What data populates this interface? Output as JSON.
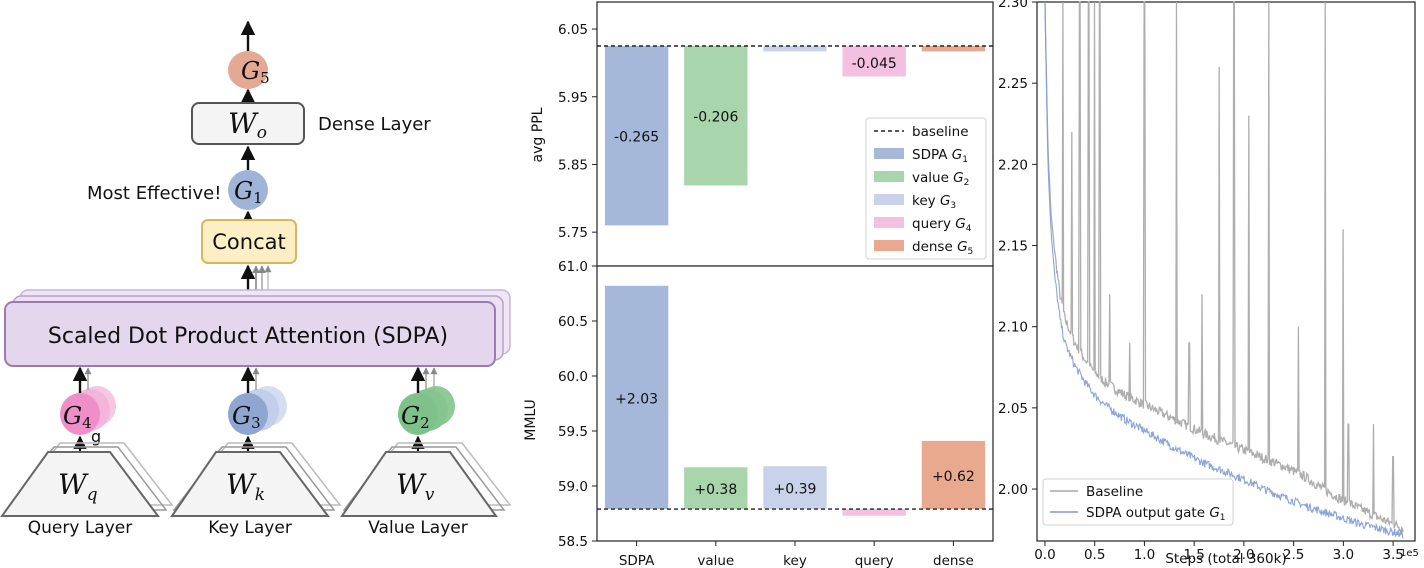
{
  "diagram": {
    "sdpa_label": "Scaled Dot Product Attention (SDPA)",
    "concat_label": "Concat",
    "dense_layer_label": "Dense Layer",
    "most_effective_label": "Most Effective!",
    "wo_label": "W",
    "wo_sub": "o",
    "g5_label": "G",
    "g5_sub": "5",
    "g1_label": "G",
    "g1_sub": "1",
    "g4_label": "G",
    "g4_sub": "4",
    "g3_label": "G",
    "g3_sub": "3",
    "g2_label": "G",
    "g2_sub": "2",
    "g_small_label": "g",
    "wq_label": "W",
    "wq_sub": "q",
    "wk_label": "W",
    "wk_sub": "k",
    "wv_label": "W",
    "wv_sub": "v",
    "query_layer_label": "Query Layer",
    "key_layer_label": "Key Layer",
    "value_layer_label": "Value Layer",
    "colors": {
      "g5": "#e4a995",
      "g1": "#9fb5d8",
      "g4": "#ee8fca",
      "g3": "#8fa6d2",
      "g2": "#7fc18a",
      "sdpa_fill": "#e4d6ec",
      "sdpa_stroke": "#9a7bb1",
      "concat_fill": "#fcefc5",
      "concat_stroke": "#d8b75a",
      "wo_fill": "#f4f4f4",
      "wo_stroke": "#555555"
    }
  },
  "chart_data": [
    {
      "type": "bar",
      "ylabel": "avg PPL",
      "categories": [
        "SDPA",
        "value",
        "key",
        "query",
        "dense"
      ],
      "baseline": 6.025,
      "values": [
        -0.265,
        -0.206,
        -0.008,
        -0.045,
        -0.008
      ],
      "bar_labels": [
        "-0.265",
        "-0.206",
        "",
        "-0.045",
        ""
      ],
      "ylim": [
        5.7,
        6.09
      ],
      "yticks": [
        "6.05",
        "5.95",
        "5.85",
        "5.75"
      ],
      "ytick_values": [
        6.05,
        5.95,
        5.85,
        5.75
      ],
      "colors": [
        "#a5b8d9",
        "#a9d5ac",
        "#c8d2e8",
        "#f3c0e0",
        "#e8a98e"
      ],
      "legend": {
        "position": "lower-right",
        "baseline": "baseline",
        "entries": [
          {
            "name": "SDPA",
            "sub": "1"
          },
          {
            "name": "value",
            "sub": "2"
          },
          {
            "name": "key",
            "sub": "3"
          },
          {
            "name": "query",
            "sub": "4"
          },
          {
            "name": "dense",
            "sub": "5"
          }
        ],
        "gate_symbol": "G"
      }
    },
    {
      "type": "bar",
      "ylabel": "MMLU",
      "categories": [
        "SDPA",
        "value",
        "key",
        "query",
        "dense"
      ],
      "baseline": 58.79,
      "values": [
        2.03,
        0.38,
        0.39,
        -0.06,
        0.62
      ],
      "bar_labels": [
        "+2.03",
        "+0.38",
        "+0.39",
        "",
        "+0.62"
      ],
      "ylim": [
        58.5,
        61.0
      ],
      "yticks": [
        "61.0",
        "60.5",
        "60.0",
        "59.5",
        "59.0",
        "58.5"
      ],
      "ytick_values": [
        61.0,
        60.5,
        60.0,
        59.5,
        59.0,
        58.5
      ],
      "colors": [
        "#a5b8d9",
        "#a9d5ac",
        "#c8d2e8",
        "#f3c0e0",
        "#e8a98e"
      ]
    },
    {
      "type": "line",
      "xlabel": "Steps (total 360k)",
      "x_scale_label": "1e5",
      "xticks": [
        "0.0",
        "0.5",
        "1.0",
        "1.5",
        "2.0",
        "2.5",
        "3.0",
        "3.5"
      ],
      "xtick_values": [
        0.0,
        0.5,
        1.0,
        1.5,
        2.0,
        2.5,
        3.0,
        3.5
      ],
      "yticks": [
        "2.30",
        "2.25",
        "2.20",
        "2.15",
        "2.10",
        "2.05",
        "2.00"
      ],
      "ytick_values": [
        2.3,
        2.25,
        2.2,
        2.15,
        2.1,
        2.05,
        2.0
      ],
      "xlim": [
        -0.08,
        3.72
      ],
      "ylim": [
        1.968,
        2.3
      ],
      "legend": {
        "position": "lower-left",
        "baseline": "Baseline",
        "gated": "SDPA output gate",
        "gate_symbol": "G",
        "gate_sub": "1"
      },
      "series": [
        {
          "name": "Baseline",
          "color": "#aaaaaa",
          "x": [
            0.0,
            0.03,
            0.06,
            0.1,
            0.15,
            0.2,
            0.3,
            0.4,
            0.5,
            0.6,
            0.8,
            1.0,
            1.2,
            1.4,
            1.6,
            1.8,
            2.0,
            2.2,
            2.4,
            2.6,
            2.8,
            3.0,
            3.2,
            3.4,
            3.6
          ],
          "y": [
            2.3,
            2.21,
            2.17,
            2.145,
            2.12,
            2.105,
            2.09,
            2.08,
            2.072,
            2.066,
            2.058,
            2.052,
            2.046,
            2.04,
            2.034,
            2.029,
            2.024,
            2.019,
            2.014,
            2.008,
            2.0,
            1.993,
            1.987,
            1.981,
            1.976
          ],
          "spikes": [
            {
              "x": 0.18,
              "y": 2.3
            },
            {
              "x": 0.27,
              "y": 2.22
            },
            {
              "x": 0.35,
              "y": 2.3
            },
            {
              "x": 0.44,
              "y": 2.3
            },
            {
              "x": 0.5,
              "y": 2.3
            },
            {
              "x": 0.55,
              "y": 2.3
            },
            {
              "x": 0.65,
              "y": 2.12
            },
            {
              "x": 0.85,
              "y": 2.09
            },
            {
              "x": 1.0,
              "y": 2.3
            },
            {
              "x": 1.32,
              "y": 2.3
            },
            {
              "x": 1.45,
              "y": 2.09
            },
            {
              "x": 1.58,
              "y": 2.12
            },
            {
              "x": 1.75,
              "y": 2.26
            },
            {
              "x": 1.9,
              "y": 2.3
            },
            {
              "x": 2.05,
              "y": 2.23
            },
            {
              "x": 2.25,
              "y": 2.3
            },
            {
              "x": 2.55,
              "y": 2.1
            },
            {
              "x": 2.82,
              "y": 2.3
            },
            {
              "x": 3.0,
              "y": 2.16
            },
            {
              "x": 3.05,
              "y": 2.04
            },
            {
              "x": 3.3,
              "y": 2.04
            },
            {
              "x": 3.5,
              "y": 2.02
            }
          ]
        },
        {
          "name": "SDPA output gate",
          "color": "#7f9ad4",
          "x": [
            0.0,
            0.03,
            0.06,
            0.1,
            0.15,
            0.2,
            0.3,
            0.4,
            0.5,
            0.6,
            0.8,
            1.0,
            1.2,
            1.4,
            1.6,
            1.8,
            2.0,
            2.2,
            2.4,
            2.6,
            2.8,
            3.0,
            3.2,
            3.4,
            3.6
          ],
          "y": [
            2.3,
            2.2,
            2.16,
            2.13,
            2.105,
            2.09,
            2.076,
            2.066,
            2.058,
            2.052,
            2.043,
            2.036,
            2.029,
            2.022,
            2.016,
            2.011,
            2.006,
            2.0,
            1.995,
            1.99,
            1.986,
            1.982,
            1.978,
            1.975,
            1.972
          ]
        }
      ]
    }
  ]
}
